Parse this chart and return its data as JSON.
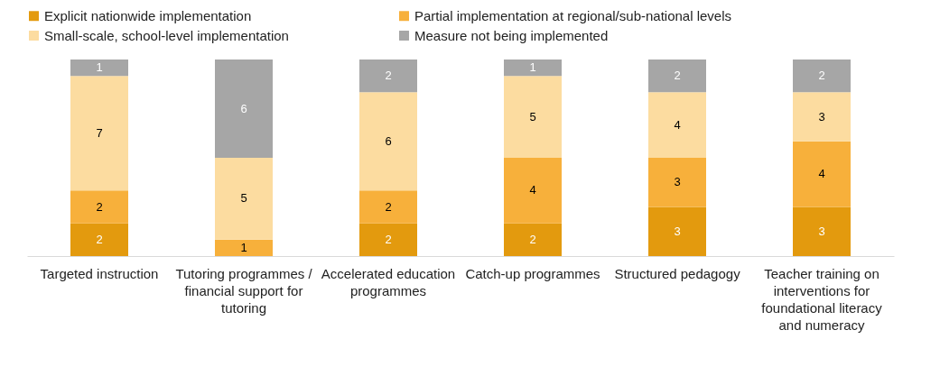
{
  "chart_data": {
    "type": "bar",
    "stacked": true,
    "data_labels": true,
    "legend": "top",
    "grid": false,
    "categories": [
      "Targeted instruction",
      "Tutoring programmes / financial support for tutoring",
      "Accelerated education programmes",
      "Catch-up programmes",
      "Structured pedagogy",
      "Teacher training on interventions for foundational literacy and numeracy"
    ],
    "series": [
      {
        "name": "Explicit nationwide implementation",
        "color": "#e39a0e",
        "values": [
          2,
          null,
          2,
          2,
          3,
          3
        ]
      },
      {
        "name": "Partial implementation at regional/sub-national levels",
        "color": "#f7b03b",
        "values": [
          2,
          1,
          2,
          4,
          3,
          4
        ]
      },
      {
        "name": "Small-scale, school-level implementation",
        "color": "#fcdca0",
        "values": [
          7,
          5,
          6,
          5,
          4,
          3
        ]
      },
      {
        "name": "Measure not being implemented",
        "color": "#a6a6a6",
        "values": [
          1,
          6,
          2,
          1,
          2,
          2
        ]
      }
    ]
  }
}
